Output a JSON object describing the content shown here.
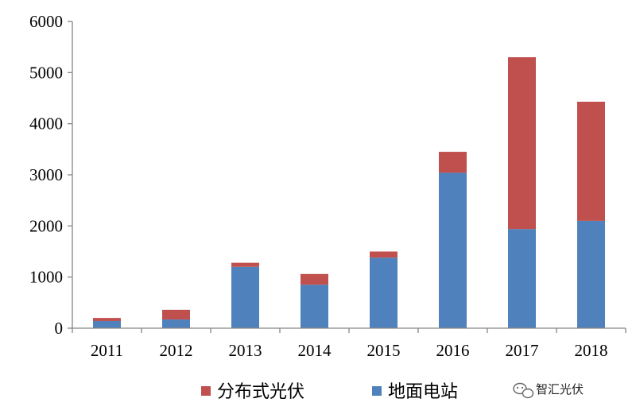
{
  "chart_data": {
    "type": "bar",
    "stacked": true,
    "categories": [
      "2011",
      "2012",
      "2013",
      "2014",
      "2015",
      "2016",
      "2017",
      "2018"
    ],
    "series": [
      {
        "name": "地面电站",
        "color": "#4f81bd",
        "values": [
          140,
          170,
          1200,
          850,
          1380,
          3040,
          1940,
          2100
        ]
      },
      {
        "name": "分布式光伏",
        "color": "#c0504d",
        "values": [
          60,
          190,
          80,
          210,
          120,
          410,
          3360,
          2330
        ]
      }
    ],
    "ylim": [
      0,
      6000
    ],
    "yticks": [
      0,
      1000,
      2000,
      3000,
      4000,
      5000,
      6000
    ],
    "legend_position": "bottom",
    "legend_order": [
      "分布式光伏",
      "地面电站"
    ],
    "grid": false
  },
  "watermark": {
    "text": "智汇光伏"
  }
}
